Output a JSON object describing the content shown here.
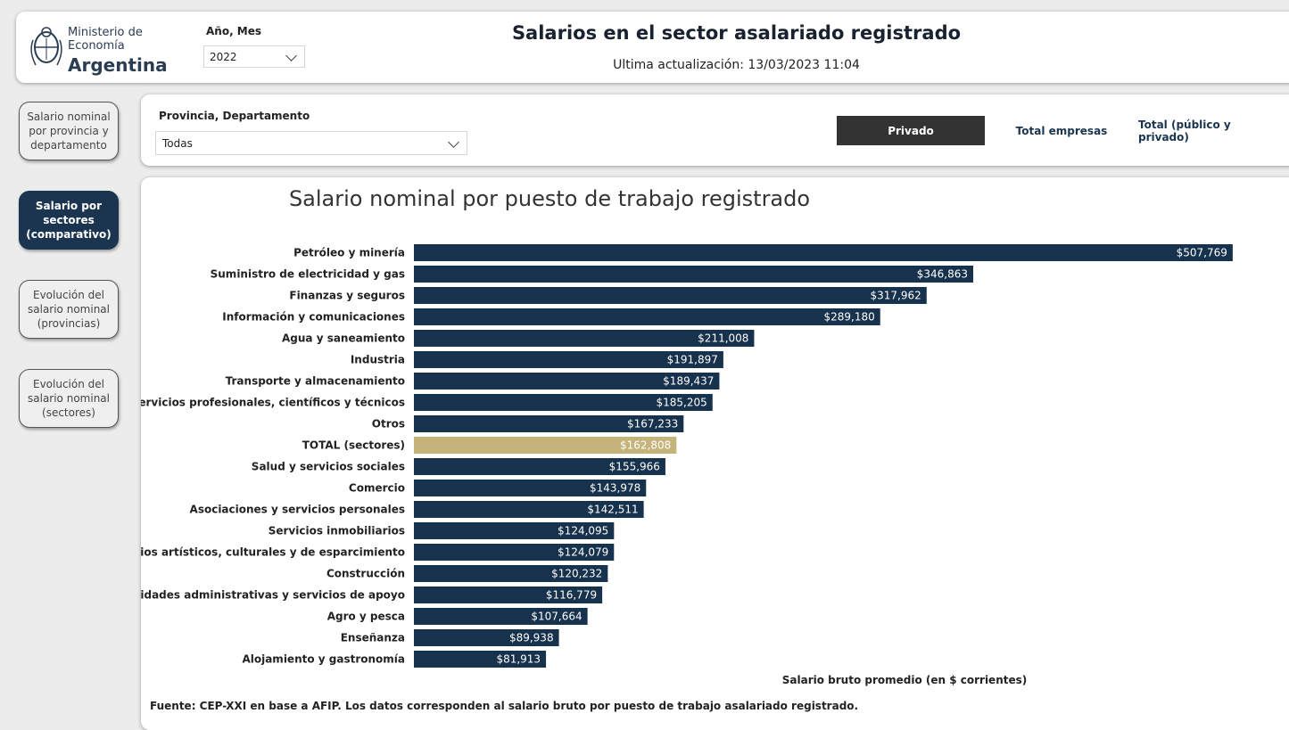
{
  "header": {
    "logo": {
      "line1": "Ministerio de",
      "line2": "Economía",
      "line3": "Argentina"
    },
    "year_filter": {
      "label": "Año, Mes",
      "value": "2022"
    },
    "title": "Salarios en el sector asalariado registrado",
    "updated": "Ultima actualización: 13/03/2023 11:04"
  },
  "nav": {
    "items": [
      {
        "label": "Salario nominal\npor provincia y\ndepartamento",
        "active": false
      },
      {
        "label": "Salario por\nsectores\n(comparativo)",
        "active": true
      },
      {
        "label": "Evolución del\nsalario nominal\n(provincias)",
        "active": false
      },
      {
        "label": "Evolución del\nsalario nominal\n(sectores)",
        "active": false
      }
    ]
  },
  "filters": {
    "province": {
      "label": "Provincia, Departamento",
      "value": "Todas"
    },
    "segments": [
      {
        "label": "Privado",
        "active": true
      },
      {
        "label": "Total empresas",
        "active": false
      },
      {
        "label": "Total (público y privado)",
        "active": false
      }
    ]
  },
  "chart_title": "Salario nominal por puesto de trabajo registrado",
  "chart_data": {
    "type": "bar",
    "orientation": "horizontal",
    "categories": [
      "Petróleo y minería",
      "Suministro de electricidad y gas",
      "Finanzas y seguros",
      "Información y comunicaciones",
      "Agua y saneamiento",
      "Industria",
      "Transporte y almacenamiento",
      "Servicios profesionales, científicos y técnicos",
      "Otros",
      "TOTAL (sectores)",
      "Salud y servicios sociales",
      "Comercio",
      "Asociaciones y servicios personales",
      "Servicios inmobiliarios",
      "Servicios artísticos, culturales y de esparcimiento",
      "Construcción",
      "Actividades administrativas y servicios de apoyo",
      "Agro y pesca",
      "Enseñanza",
      "Alojamiento y gastronomía"
    ],
    "values": [
      507769,
      346863,
      317962,
      289180,
      211008,
      191897,
      189437,
      185205,
      167233,
      162808,
      155966,
      143978,
      142511,
      124095,
      124079,
      120232,
      116779,
      107664,
      89938,
      81913
    ],
    "value_labels": [
      "$507,769",
      "$346,863",
      "$317,962",
      "$289,180",
      "$211,008",
      "$191,897",
      "$189,437",
      "$185,205",
      "$167,233",
      "$162,808",
      "$155,966",
      "$143,978",
      "$142,511",
      "$124,095",
      "$124,079",
      "$120,232",
      "$116,779",
      "$107,664",
      "$89,938",
      "$81,913"
    ],
    "highlight_category": "TOTAL (sectores)",
    "bar_color": "#17324d",
    "highlight_color": "#c4b47a",
    "xlabel": "Salario bruto promedio (en $ corrientes)",
    "xlim": [
      0,
      520000
    ],
    "grid": false,
    "legend": "none"
  },
  "source": "Fuente: CEP-XXI en base a AFIP. Los datos corresponden al salario bruto por puesto de trabajo asalariado registrado."
}
